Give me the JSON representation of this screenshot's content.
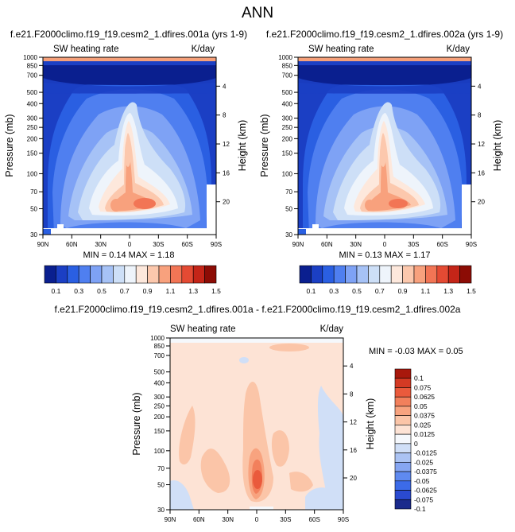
{
  "figure_title": "ANN",
  "colors": {
    "abs_scale": [
      "#0a1f8f",
      "#1b3fc4",
      "#2a5fe2",
      "#4f7ff0",
      "#7ea2f5",
      "#a6c2f6",
      "#cddff7",
      "#eef4fb",
      "#fde8dc",
      "#fcc8ad",
      "#f8a17d",
      "#f27555",
      "#e44a33",
      "#c42518",
      "#8c0c05"
    ],
    "diff_scale": [
      "#1a2a8c",
      "#2a4ad0",
      "#3c6be8",
      "#5f8af0",
      "#86a6f2",
      "#abc3f3",
      "#d0dff7",
      "#f5f8fc",
      "#fde3d5",
      "#fbc5a8",
      "#f8a37f",
      "#f2805c",
      "#ea5a3c",
      "#d43a24",
      "#a8180c"
    ]
  },
  "chart_data": [
    {
      "type": "contour",
      "title": "f.e21.F2000climo.f19_f19.cesm2_1.dfires.001a (yrs 1-9)",
      "left_label": "SW heating rate",
      "right_label": "K/day",
      "ylabel": "Pressure (mb)",
      "y2label": "Height (km)",
      "x_ticks": [
        "90N",
        "60N",
        "30N",
        "0",
        "30S",
        "60S",
        "90S"
      ],
      "x_values": [
        90,
        60,
        30,
        0,
        -30,
        -60,
        -90
      ],
      "y_ticks": [
        "1000",
        "850",
        "700",
        "500",
        "400",
        "300",
        "250",
        "200",
        "150",
        "100",
        "70",
        "50",
        "30"
      ],
      "y_values": [
        1000,
        850,
        700,
        500,
        400,
        300,
        250,
        200,
        150,
        100,
        70,
        50,
        30
      ],
      "y2_ticks": [
        "4",
        "8",
        "12",
        "16",
        "20"
      ],
      "y2_values": [
        4,
        8,
        12,
        16,
        20
      ],
      "stats": "MIN =  0.14  MAX =  1.18",
      "ylim": [
        1000,
        30
      ],
      "xlim": [
        90,
        -90
      ]
    },
    {
      "type": "contour",
      "title": "f.e21.F2000climo.f19_f19.cesm2_1.dfires.002a (yrs 1-9)",
      "left_label": "SW heating rate",
      "right_label": "K/day",
      "ylabel": "Pressure (mb)",
      "y2label": "Height (km)",
      "x_ticks": [
        "90N",
        "60N",
        "30N",
        "0",
        "30S",
        "60S",
        "90S"
      ],
      "x_values": [
        90,
        60,
        30,
        0,
        -30,
        -60,
        -90
      ],
      "y_ticks": [
        "1000",
        "850",
        "700",
        "500",
        "400",
        "300",
        "250",
        "200",
        "150",
        "100",
        "70",
        "50",
        "30"
      ],
      "y_values": [
        1000,
        850,
        700,
        500,
        400,
        300,
        250,
        200,
        150,
        100,
        70,
        50,
        30
      ],
      "y2_ticks": [
        "4",
        "8",
        "12",
        "16",
        "20"
      ],
      "y2_values": [
        4,
        8,
        12,
        16,
        20
      ],
      "stats": "MIN =  0.13  MAX =  1.17",
      "ylim": [
        1000,
        30
      ],
      "xlim": [
        90,
        -90
      ]
    },
    {
      "type": "contour",
      "title": "f.e21.F2000climo.f19_f19.cesm2_1.dfires.001a - f.e21.F2000climo.f19_f19.cesm2_1.dfires.002a",
      "left_label": "SW heating rate",
      "right_label": "K/day",
      "ylabel": "Pressure (mb)",
      "y2label": "Height (km)",
      "x_ticks": [
        "90N",
        "60N",
        "30N",
        "0",
        "30S",
        "60S",
        "90S"
      ],
      "x_values": [
        90,
        60,
        30,
        0,
        -30,
        -60,
        -90
      ],
      "y_ticks": [
        "1000",
        "850",
        "700",
        "500",
        "400",
        "300",
        "250",
        "200",
        "150",
        "100",
        "70",
        "50",
        "30"
      ],
      "y_values": [
        1000,
        850,
        700,
        500,
        400,
        300,
        250,
        200,
        150,
        100,
        70,
        50,
        30
      ],
      "y2_ticks": [
        "4",
        "8",
        "12",
        "16",
        "20"
      ],
      "y2_values": [
        4,
        8,
        12,
        16,
        20
      ],
      "stats": "MIN = -0.03  MAX =  0.05",
      "ylim": [
        1000,
        30
      ],
      "xlim": [
        90,
        -90
      ]
    }
  ],
  "colorbar_abs": {
    "labels": [
      "0.1",
      "0.3",
      "0.5",
      "0.7",
      "0.9",
      "1.1",
      "1.3",
      "1.5"
    ]
  },
  "colorbar_diff": {
    "labels": [
      "0.1",
      "0.075",
      "0.0625",
      "0.05",
      "0.0375",
      "0.025",
      "0.0125",
      "0",
      "-0.0125",
      "-0.025",
      "-0.0375",
      "-0.05",
      "-0.0625",
      "-0.075",
      "-0.1"
    ]
  }
}
